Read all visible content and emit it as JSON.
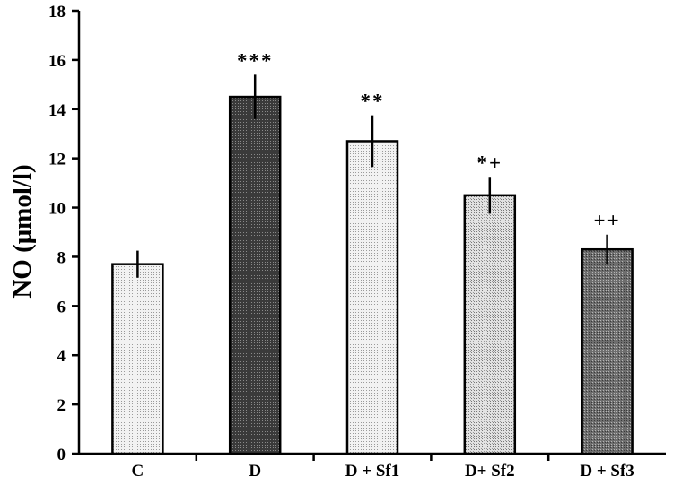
{
  "chart_data": {
    "type": "bar",
    "ylabel": "NO (μmol/l)",
    "ylim": [
      0,
      18
    ],
    "yticks": [
      0,
      2,
      4,
      6,
      8,
      10,
      12,
      14,
      16,
      18
    ],
    "grid": false,
    "categories": [
      "C",
      "D",
      "D + Sf1",
      "D+ Sf2",
      "D + Sf3"
    ],
    "values": [
      7.7,
      14.5,
      12.7,
      10.5,
      8.3
    ],
    "errors": [
      0.55,
      0.9,
      1.05,
      0.75,
      0.6
    ],
    "annotations": [
      "",
      "***",
      "**",
      "*+",
      "++"
    ],
    "bar_styles": [
      {
        "fill": "#ececec",
        "pattern": "light-dots"
      },
      {
        "fill": "#4d4d4d",
        "pattern": "dark-dense"
      },
      {
        "fill": "#e8e8e8",
        "pattern": "light-dots"
      },
      {
        "fill": "#d9d9d9",
        "pattern": "medium-dots"
      },
      {
        "fill": "#7a7a7a",
        "pattern": "dark-dots"
      }
    ]
  }
}
